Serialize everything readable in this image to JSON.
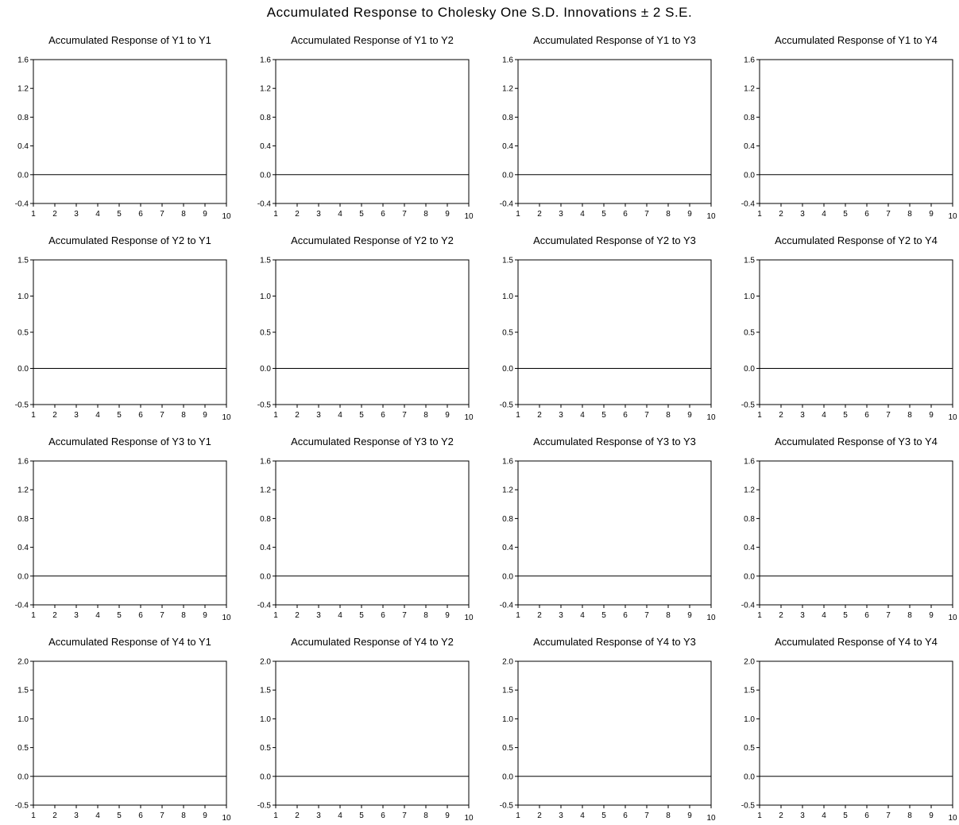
{
  "title": "Accumulated Response to Cholesky One S.D. Innovations ± 2 S.E.",
  "chart_data": [
    {
      "type": "line",
      "title": "Accumulated Response of Y1 to Y1",
      "x": [
        1,
        2,
        3,
        4,
        5,
        6,
        7,
        8,
        9,
        10
      ],
      "xlim": [
        1,
        10
      ],
      "ylim": [
        -0.4,
        1.6
      ],
      "yticks": [
        "-0.4",
        "0.0",
        "0.4",
        "0.8",
        "1.2",
        "1.6"
      ],
      "series": [
        {
          "values": [
            0,
            0,
            0,
            0,
            0,
            0,
            0,
            0,
            0,
            0
          ]
        }
      ]
    },
    {
      "type": "line",
      "title": "Accumulated Response of Y1 to Y2",
      "x": [
        1,
        2,
        3,
        4,
        5,
        6,
        7,
        8,
        9,
        10
      ],
      "xlim": [
        1,
        10
      ],
      "ylim": [
        -0.4,
        1.6
      ],
      "yticks": [
        "-0.4",
        "0.0",
        "0.4",
        "0.8",
        "1.2",
        "1.6"
      ],
      "series": [
        {
          "values": [
            0,
            0,
            0,
            0,
            0,
            0,
            0,
            0,
            0,
            0
          ]
        }
      ]
    },
    {
      "type": "line",
      "title": "Accumulated Response of Y1 to Y3",
      "x": [
        1,
        2,
        3,
        4,
        5,
        6,
        7,
        8,
        9,
        10
      ],
      "xlim": [
        1,
        10
      ],
      "ylim": [
        -0.4,
        1.6
      ],
      "yticks": [
        "-0.4",
        "0.0",
        "0.4",
        "0.8",
        "1.2",
        "1.6"
      ],
      "series": [
        {
          "values": [
            0,
            0,
            0,
            0,
            0,
            0,
            0,
            0,
            0,
            0
          ]
        }
      ]
    },
    {
      "type": "line",
      "title": "Accumulated Response of Y1 to Y4",
      "x": [
        1,
        2,
        3,
        4,
        5,
        6,
        7,
        8,
        9,
        10
      ],
      "xlim": [
        1,
        10
      ],
      "ylim": [
        -0.4,
        1.6
      ],
      "yticks": [
        "-0.4",
        "0.0",
        "0.4",
        "0.8",
        "1.2",
        "1.6"
      ],
      "series": [
        {
          "values": [
            0,
            0,
            0,
            0,
            0,
            0,
            0,
            0,
            0,
            0
          ]
        }
      ]
    },
    {
      "type": "line",
      "title": "Accumulated Response of Y2 to Y1",
      "x": [
        1,
        2,
        3,
        4,
        5,
        6,
        7,
        8,
        9,
        10
      ],
      "xlim": [
        1,
        10
      ],
      "ylim": [
        -0.5,
        1.5
      ],
      "yticks": [
        "-0.5",
        "0.0",
        "0.5",
        "1.0",
        "1.5"
      ],
      "series": [
        {
          "values": [
            0,
            0,
            0,
            0,
            0,
            0,
            0,
            0,
            0,
            0
          ]
        }
      ]
    },
    {
      "type": "line",
      "title": "Accumulated Response of Y2 to Y2",
      "x": [
        1,
        2,
        3,
        4,
        5,
        6,
        7,
        8,
        9,
        10
      ],
      "xlim": [
        1,
        10
      ],
      "ylim": [
        -0.5,
        1.5
      ],
      "yticks": [
        "-0.5",
        "0.0",
        "0.5",
        "1.0",
        "1.5"
      ],
      "series": [
        {
          "values": [
            0,
            0,
            0,
            0,
            0,
            0,
            0,
            0,
            0,
            0
          ]
        }
      ]
    },
    {
      "type": "line",
      "title": "Accumulated Response of Y2 to Y3",
      "x": [
        1,
        2,
        3,
        4,
        5,
        6,
        7,
        8,
        9,
        10
      ],
      "xlim": [
        1,
        10
      ],
      "ylim": [
        -0.5,
        1.5
      ],
      "yticks": [
        "-0.5",
        "0.0",
        "0.5",
        "1.0",
        "1.5"
      ],
      "series": [
        {
          "values": [
            0,
            0,
            0,
            0,
            0,
            0,
            0,
            0,
            0,
            0
          ]
        }
      ]
    },
    {
      "type": "line",
      "title": "Accumulated Response of Y2 to Y4",
      "x": [
        1,
        2,
        3,
        4,
        5,
        6,
        7,
        8,
        9,
        10
      ],
      "xlim": [
        1,
        10
      ],
      "ylim": [
        -0.5,
        1.5
      ],
      "yticks": [
        "-0.5",
        "0.0",
        "0.5",
        "1.0",
        "1.5"
      ],
      "series": [
        {
          "values": [
            0,
            0,
            0,
            0,
            0,
            0,
            0,
            0,
            0,
            0
          ]
        }
      ]
    },
    {
      "type": "line",
      "title": "Accumulated Response of Y3 to Y1",
      "x": [
        1,
        2,
        3,
        4,
        5,
        6,
        7,
        8,
        9,
        10
      ],
      "xlim": [
        1,
        10
      ],
      "ylim": [
        -0.4,
        1.6
      ],
      "yticks": [
        "-0.4",
        "0.0",
        "0.4",
        "0.8",
        "1.2",
        "1.6"
      ],
      "series": [
        {
          "values": [
            0,
            0,
            0,
            0,
            0,
            0,
            0,
            0,
            0,
            0
          ]
        }
      ]
    },
    {
      "type": "line",
      "title": "Accumulated Response of Y3 to Y2",
      "x": [
        1,
        2,
        3,
        4,
        5,
        6,
        7,
        8,
        9,
        10
      ],
      "xlim": [
        1,
        10
      ],
      "ylim": [
        -0.4,
        1.6
      ],
      "yticks": [
        "-0.4",
        "0.0",
        "0.4",
        "0.8",
        "1.2",
        "1.6"
      ],
      "series": [
        {
          "values": [
            0,
            0,
            0,
            0,
            0,
            0,
            0,
            0,
            0,
            0
          ]
        }
      ]
    },
    {
      "type": "line",
      "title": "Accumulated Response of Y3 to Y3",
      "x": [
        1,
        2,
        3,
        4,
        5,
        6,
        7,
        8,
        9,
        10
      ],
      "xlim": [
        1,
        10
      ],
      "ylim": [
        -0.4,
        1.6
      ],
      "yticks": [
        "-0.4",
        "0.0",
        "0.4",
        "0.8",
        "1.2",
        "1.6"
      ],
      "series": [
        {
          "values": [
            0,
            0,
            0,
            0,
            0,
            0,
            0,
            0,
            0,
            0
          ]
        }
      ]
    },
    {
      "type": "line",
      "title": "Accumulated Response of Y3 to Y4",
      "x": [
        1,
        2,
        3,
        4,
        5,
        6,
        7,
        8,
        9,
        10
      ],
      "xlim": [
        1,
        10
      ],
      "ylim": [
        -0.4,
        1.6
      ],
      "yticks": [
        "-0.4",
        "0.0",
        "0.4",
        "0.8",
        "1.2",
        "1.6"
      ],
      "series": [
        {
          "values": [
            0,
            0,
            0,
            0,
            0,
            0,
            0,
            0,
            0,
            0
          ]
        }
      ]
    },
    {
      "type": "line",
      "title": "Accumulated Response of Y4 to Y1",
      "x": [
        1,
        2,
        3,
        4,
        5,
        6,
        7,
        8,
        9,
        10
      ],
      "xlim": [
        1,
        10
      ],
      "ylim": [
        -0.5,
        2.0
      ],
      "yticks": [
        "-0.5",
        "0.0",
        "0.5",
        "1.0",
        "1.5",
        "2.0"
      ],
      "series": [
        {
          "values": [
            0,
            0,
            0,
            0,
            0,
            0,
            0,
            0,
            0,
            0
          ]
        }
      ]
    },
    {
      "type": "line",
      "title": "Accumulated Response of Y4 to Y2",
      "x": [
        1,
        2,
        3,
        4,
        5,
        6,
        7,
        8,
        9,
        10
      ],
      "xlim": [
        1,
        10
      ],
      "ylim": [
        -0.5,
        2.0
      ],
      "yticks": [
        "-0.5",
        "0.0",
        "0.5",
        "1.0",
        "1.5",
        "2.0"
      ],
      "series": [
        {
          "values": [
            0,
            0,
            0,
            0,
            0,
            0,
            0,
            0,
            0,
            0
          ]
        }
      ]
    },
    {
      "type": "line",
      "title": "Accumulated Response of Y4 to Y3",
      "x": [
        1,
        2,
        3,
        4,
        5,
        6,
        7,
        8,
        9,
        10
      ],
      "xlim": [
        1,
        10
      ],
      "ylim": [
        -0.5,
        2.0
      ],
      "yticks": [
        "-0.5",
        "0.0",
        "0.5",
        "1.0",
        "1.5",
        "2.0"
      ],
      "series": [
        {
          "values": [
            0,
            0,
            0,
            0,
            0,
            0,
            0,
            0,
            0,
            0
          ]
        }
      ]
    },
    {
      "type": "line",
      "title": "Accumulated Response of Y4 to Y4",
      "x": [
        1,
        2,
        3,
        4,
        5,
        6,
        7,
        8,
        9,
        10
      ],
      "xlim": [
        1,
        10
      ],
      "ylim": [
        -0.5,
        2.0
      ],
      "yticks": [
        "-0.5",
        "0.0",
        "0.5",
        "1.0",
        "1.5",
        "2.0"
      ],
      "series": [
        {
          "values": [
            0,
            0,
            0,
            0,
            0,
            0,
            0,
            0,
            0,
            0
          ]
        }
      ]
    }
  ]
}
